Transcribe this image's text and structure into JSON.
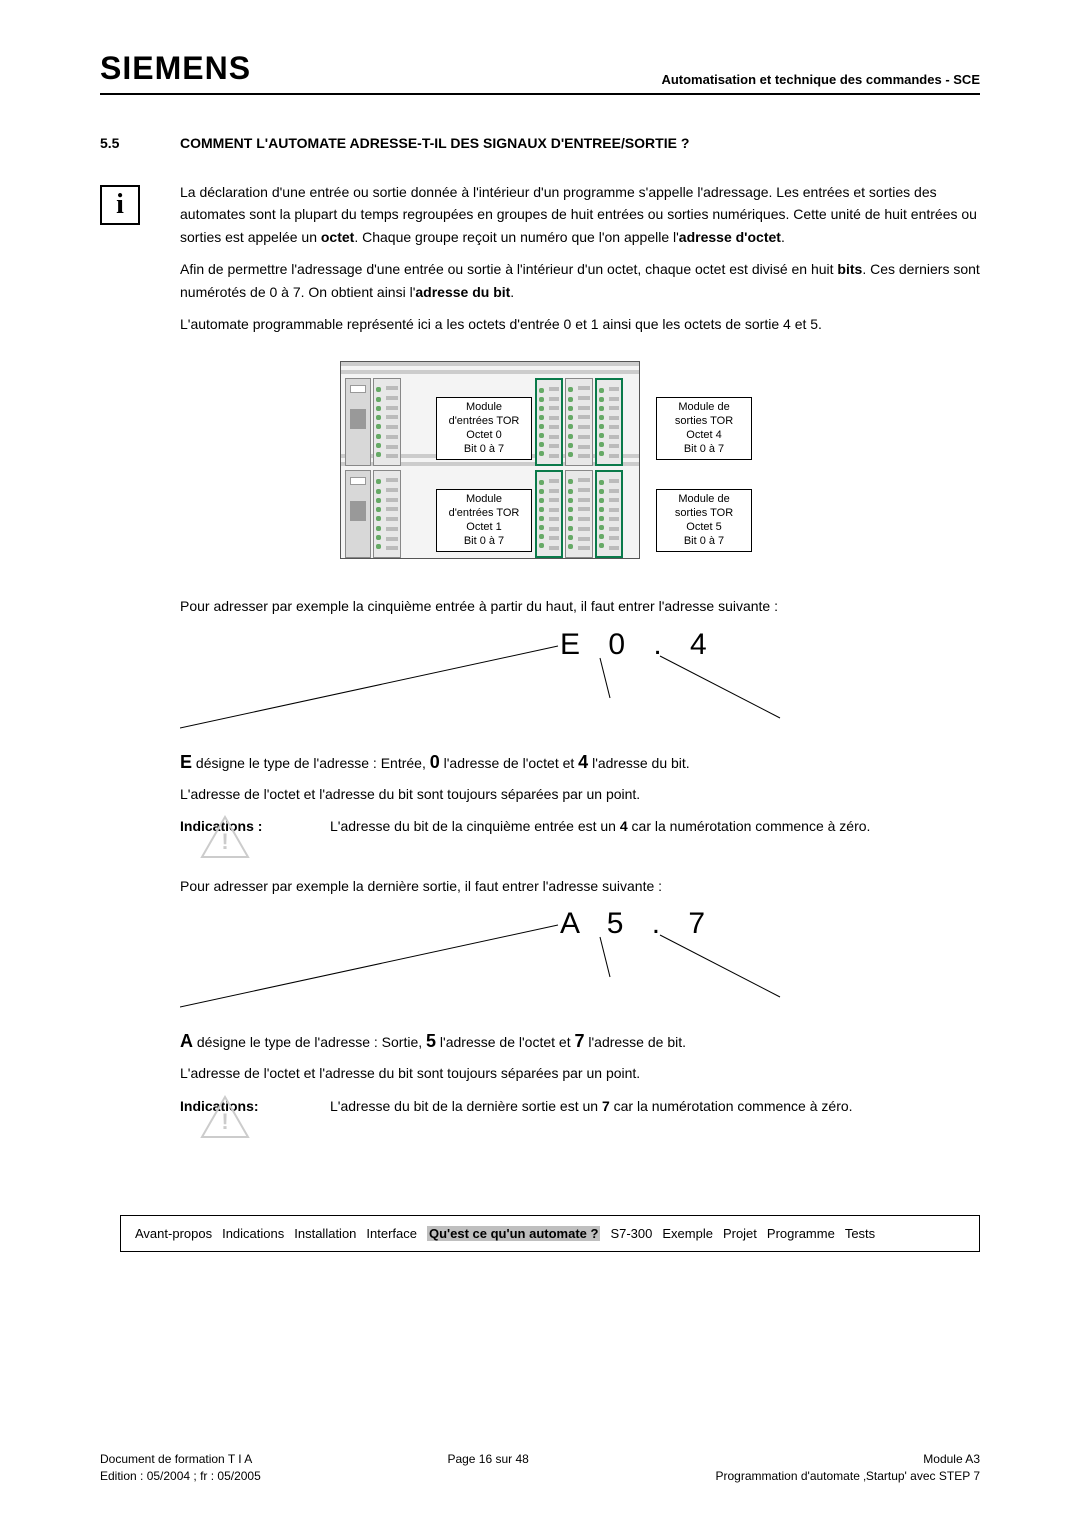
{
  "header": {
    "logo": "SIEMENS",
    "right": "Automatisation et technique des commandes - SCE"
  },
  "section": {
    "num": "5.5",
    "title": "COMMENT L'AUTOMATE ADRESSE-T-IL DES SIGNAUX D'ENTREE/SORTIE ?"
  },
  "info_icon": "i",
  "para": {
    "p1": "La déclaration d'une entrée ou sortie donnée à l'intérieur d'un programme s'appelle l'adressage. Les entrées et sorties des automates sont la plupart du temps regroupées en groupes de huit entrées ou sorties numériques. Cette unité de huit entrées ou sorties est appelée un ",
    "p1b1": "octet",
    "p1c": ". Chaque groupe reçoit un numéro que l'on appelle l'",
    "p1b2": "adresse d'octet",
    "p1d": ".",
    "p2": "Afin de permettre l'adressage d'une entrée ou sortie à l'intérieur d'un octet, chaque octet est divisé en huit ",
    "p2b1": "bits",
    "p2c": ". Ces derniers sont numérotés de 0 à 7. On obtient ainsi l'",
    "p2b2": "adresse du bit",
    "p2d": ".",
    "p3": "L'automate programmable représenté ici a les octets d'entrée 0 et 1 ainsi que les octets de sortie 4 et 5."
  },
  "plc_labels": {
    "tl": {
      "l1": "Module",
      "l2": "d'entrées TOR",
      "l3": "Octet 0",
      "l4": "Bit 0 à 7"
    },
    "tr": {
      "l1": "Module de",
      "l2": "sorties TOR",
      "l3": "Octet 4",
      "l4": "Bit 0 à 7"
    },
    "bl": {
      "l1": "Module",
      "l2": "d'entrées TOR",
      "l3": "Octet 1",
      "l4": "Bit 0 à 7"
    },
    "br": {
      "l1": "Module de",
      "l2": "sorties TOR",
      "l3": "Octet 5",
      "l4": "Bit 0 à 7"
    }
  },
  "after_fig1": "Pour adresser par exemple la cinquième entrée à partir du haut, il faut entrer l'adresse suivante :",
  "addr1": "E   0 . 4",
  "addr1_desc_pre": "E",
  "addr1_desc_1": " désigne le type de l'adresse : Entrée, ",
  "addr1_desc_b2": "0",
  "addr1_desc_2": " l'adresse de l'octet et ",
  "addr1_desc_b3": "4",
  "addr1_desc_3": " l'adresse du bit.",
  "addr1_desc_line2": "L'adresse de l'octet et l'adresse du bit sont toujours séparées par un point.",
  "ind_label": "Indications :",
  "ind1_pre": "L'adresse du bit de la cinquième entrée est un ",
  "ind1_b": "4",
  "ind1_post": " car la numérotation commence à zéro.",
  "after_fig2": "Pour adresser par exemple la dernière sortie, il faut entrer l'adresse suivante :",
  "addr2": "A   5 . 7",
  "addr2_desc_pre": "A",
  "addr2_desc_1": " désigne le type de l'adresse : Sortie, ",
  "addr2_desc_b2": "5",
  "addr2_desc_2": " l'adresse de l'octet et ",
  "addr2_desc_b3": "7",
  "addr2_desc_3": " l'adresse de bit.",
  "addr2_desc_line2": "L'adresse de l'octet et l'adresse du bit sont toujours séparées par un point.",
  "ind_label2": "Indications:",
  "ind2_pre": "L'adresse du bit de la dernière sortie est un ",
  "ind2_b": "7",
  "ind2_post": " car la numérotation commence à zéro.",
  "nav": {
    "items": [
      "Avant-propos",
      "Indications",
      "Installation",
      "Interface",
      "Qu'est ce qu'un automate ?",
      "S7-300",
      "Exemple",
      "Projet",
      "Programme",
      "Tests"
    ],
    "active_index": 4
  },
  "footer": {
    "left1": "Document de formation T I A",
    "left2": "Edition : 05/2004 ; fr : 05/2005",
    "center": "Page 16 sur 48",
    "right1": "Module A3",
    "right2": "Programmation d'automate ‚Startup' avec STEP 7"
  },
  "colors": {
    "highlight_bg": "#bfbfbf",
    "led_green": "#6aa66a",
    "module_green_border": "#0a7a4a"
  }
}
